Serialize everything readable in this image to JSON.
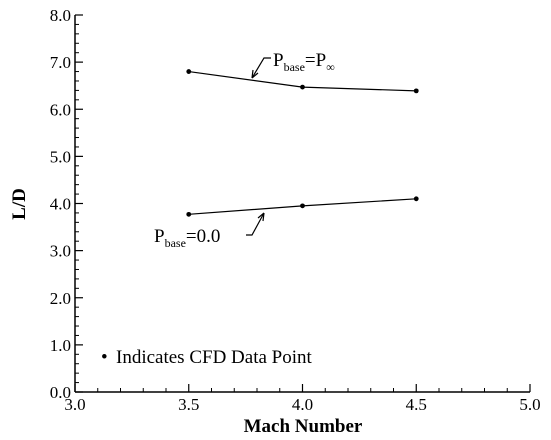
{
  "chart_data": {
    "type": "line",
    "xlabel": "Mach Number",
    "ylabel": "L/D",
    "xlim": [
      3.0,
      5.0
    ],
    "ylim": [
      0.0,
      8.0
    ],
    "x_ticks": [
      "3.0",
      "3.5",
      "4.0",
      "4.5",
      "5.0"
    ],
    "y_ticks": [
      "0.0",
      "1.0",
      "2.0",
      "3.0",
      "4.0",
      "5.0",
      "6.0",
      "7.0",
      "8.0"
    ],
    "grid": false,
    "series": [
      {
        "annotation_main": "P",
        "annotation_sub": "base",
        "annotation_rest": "=P",
        "annotation_sub2": "∞",
        "x": [
          3.5,
          4.0,
          4.5
        ],
        "y": [
          6.8,
          6.47,
          6.39
        ]
      },
      {
        "annotation_main": "P",
        "annotation_sub": "base",
        "annotation_rest": "=0.0",
        "x": [
          3.5,
          4.0,
          4.5
        ],
        "y": [
          3.77,
          3.95,
          4.1
        ]
      }
    ],
    "note_marker": "•",
    "note": "Indicates CFD Data Point"
  }
}
